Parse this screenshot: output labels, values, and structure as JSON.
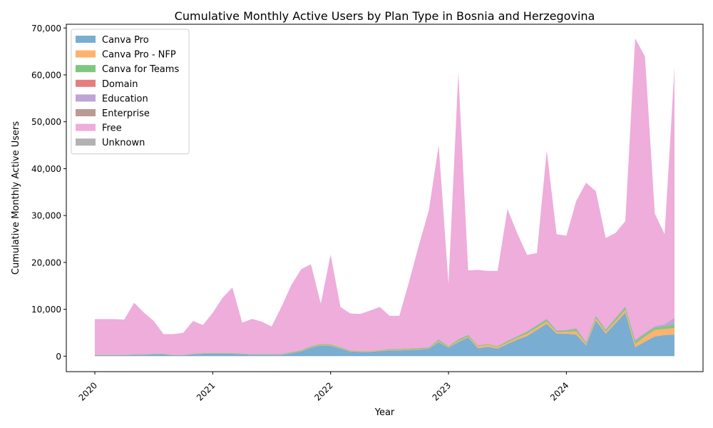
{
  "chart_data": {
    "type": "area",
    "stacked": true,
    "title": "Cumulative Monthly Active Users by Plan Type in Bosnia and Herzegovina",
    "xlabel": "Year",
    "ylabel": "Cumulative Monthly Active Users",
    "xlim": [
      2020.0,
      2024.917
    ],
    "ylim": [
      -3300,
      70800
    ],
    "x_ticks": [
      {
        "value": 2020,
        "label": "2020"
      },
      {
        "value": 2021,
        "label": "2021"
      },
      {
        "value": 2022,
        "label": "2022"
      },
      {
        "value": 2023,
        "label": "2023"
      },
      {
        "value": 2024,
        "label": "2024"
      }
    ],
    "y_ticks": [
      {
        "value": 0,
        "label": "0"
      },
      {
        "value": 10000,
        "label": "10,000"
      },
      {
        "value": 20000,
        "label": "20,000"
      },
      {
        "value": 30000,
        "label": "30,000"
      },
      {
        "value": 40000,
        "label": "40,000"
      },
      {
        "value": 50000,
        "label": "50,000"
      },
      {
        "value": 60000,
        "label": "60,000"
      },
      {
        "value": 70000,
        "label": "70,000"
      }
    ],
    "grid": false,
    "legend_position": "top-left",
    "x": [
      "2020-01",
      "2020-02",
      "2020-03",
      "2020-04",
      "2020-05",
      "2020-06",
      "2020-07",
      "2020-08",
      "2020-09",
      "2020-10",
      "2020-11",
      "2020-12",
      "2021-01",
      "2021-02",
      "2021-03",
      "2021-04",
      "2021-05",
      "2021-06",
      "2021-07",
      "2021-08",
      "2021-09",
      "2021-10",
      "2021-11",
      "2021-12",
      "2022-01",
      "2022-02",
      "2022-03",
      "2022-04",
      "2022-05",
      "2022-06",
      "2022-07",
      "2022-08",
      "2022-09",
      "2022-10",
      "2022-11",
      "2022-12",
      "2023-01",
      "2023-02",
      "2023-03",
      "2023-04",
      "2023-05",
      "2023-06",
      "2023-07",
      "2023-08",
      "2023-09",
      "2023-10",
      "2023-11",
      "2023-12",
      "2024-01",
      "2024-02",
      "2024-03",
      "2024-04",
      "2024-05",
      "2024-06",
      "2024-07",
      "2024-08",
      "2024-09",
      "2024-10",
      "2024-11",
      "2024-12"
    ],
    "series": [
      {
        "name": "Canva Pro",
        "color": "#1f77b4",
        "values": [
          200,
          200,
          200,
          200,
          300,
          300,
          400,
          400,
          200,
          200,
          400,
          500,
          500,
          500,
          500,
          400,
          300,
          300,
          300,
          300,
          600,
          1000,
          1800,
          2300,
          2200,
          1600,
          1000,
          900,
          900,
          1100,
          1200,
          1200,
          1300,
          1400,
          1600,
          3000,
          1800,
          3000,
          4000,
          1700,
          2000,
          1600,
          2600,
          3500,
          4300,
          5600,
          6900,
          4800,
          4800,
          4600,
          2300,
          7600,
          4800,
          7000,
          9300,
          1900,
          3100,
          4200,
          4500,
          4600
        ]
      },
      {
        "name": "Canva Pro - NFP",
        "color": "#ff7f0e",
        "values": [
          50,
          50,
          50,
          50,
          50,
          50,
          50,
          50,
          50,
          50,
          50,
          50,
          50,
          50,
          50,
          50,
          50,
          50,
          50,
          50,
          50,
          50,
          100,
          100,
          100,
          100,
          100,
          100,
          100,
          100,
          100,
          100,
          100,
          100,
          100,
          200,
          100,
          200,
          200,
          400,
          400,
          300,
          300,
          400,
          500,
          500,
          500,
          300,
          400,
          700,
          300,
          500,
          400,
          500,
          600,
          700,
          1100,
          1400,
          1300,
          1400
        ]
      },
      {
        "name": "Canva for Teams",
        "color": "#2ca02c",
        "values": [
          50,
          50,
          50,
          50,
          50,
          50,
          50,
          50,
          50,
          50,
          50,
          100,
          100,
          100,
          100,
          100,
          100,
          100,
          100,
          100,
          200,
          200,
          200,
          200,
          200,
          200,
          100,
          100,
          100,
          100,
          200,
          200,
          200,
          200,
          200,
          300,
          200,
          300,
          300,
          200,
          200,
          200,
          300,
          300,
          400,
          400,
          400,
          300,
          300,
          500,
          300,
          400,
          400,
          500,
          500,
          600,
          600,
          500,
          600,
          800
        ]
      },
      {
        "name": "Domain",
        "color": "#d62728",
        "values": [
          0,
          0,
          0,
          0,
          0,
          0,
          0,
          0,
          0,
          0,
          0,
          0,
          0,
          0,
          0,
          0,
          0,
          0,
          0,
          0,
          0,
          0,
          0,
          0,
          0,
          0,
          0,
          0,
          0,
          0,
          0,
          0,
          0,
          0,
          0,
          0,
          0,
          0,
          0,
          0,
          0,
          0,
          0,
          0,
          0,
          0,
          0,
          0,
          0,
          0,
          0,
          0,
          0,
          0,
          0,
          0,
          0,
          0,
          0,
          0
        ]
      },
      {
        "name": "Education",
        "color": "#9467bd",
        "values": [
          0,
          0,
          0,
          0,
          0,
          0,
          0,
          0,
          0,
          0,
          0,
          0,
          0,
          0,
          0,
          0,
          0,
          0,
          0,
          0,
          0,
          0,
          0,
          0,
          0,
          0,
          0,
          0,
          0,
          0,
          0,
          0,
          0,
          0,
          0,
          100,
          0,
          100,
          100,
          0,
          0,
          0,
          100,
          100,
          100,
          200,
          200,
          100,
          100,
          200,
          100,
          200,
          100,
          200,
          300,
          300,
          200,
          300,
          400,
          1400
        ]
      },
      {
        "name": "Enterprise",
        "color": "#8c564b",
        "values": [
          0,
          0,
          0,
          0,
          0,
          0,
          0,
          0,
          0,
          0,
          0,
          0,
          0,
          0,
          0,
          0,
          0,
          0,
          0,
          0,
          0,
          0,
          0,
          0,
          0,
          0,
          0,
          0,
          0,
          0,
          0,
          0,
          0,
          0,
          0,
          0,
          0,
          0,
          0,
          0,
          0,
          0,
          0,
          0,
          0,
          0,
          0,
          0,
          0,
          0,
          0,
          0,
          0,
          0,
          0,
          0,
          0,
          0,
          0,
          0
        ]
      },
      {
        "name": "Free",
        "color": "#e377c2",
        "values": [
          7600,
          7600,
          7600,
          7500,
          11000,
          8900,
          7000,
          4200,
          4400,
          4700,
          7000,
          6000,
          8600,
          11800,
          14000,
          6600,
          7500,
          6900,
          5900,
          10100,
          14300,
          17300,
          17500,
          8600,
          19200,
          8600,
          7900,
          7900,
          8600,
          9200,
          7100,
          7100,
          14400,
          22100,
          29200,
          41400,
          13300,
          56900,
          13700,
          16100,
          15600,
          16100,
          28100,
          21900,
          16300,
          15300,
          35900,
          20500,
          20100,
          27100,
          34000,
          26500,
          19500,
          18100,
          18100,
          64300,
          58900,
          24000,
          19200,
          53300
        ]
      },
      {
        "name": "Unknown",
        "color": "#7f7f7f",
        "values": [
          0,
          0,
          0,
          0,
          0,
          0,
          0,
          0,
          0,
          0,
          0,
          0,
          0,
          0,
          0,
          0,
          0,
          0,
          0,
          0,
          0,
          0,
          0,
          0,
          0,
          0,
          0,
          0,
          0,
          0,
          0,
          0,
          0,
          0,
          0,
          0,
          0,
          0,
          0,
          0,
          0,
          0,
          0,
          0,
          0,
          0,
          0,
          0,
          0,
          0,
          0,
          0,
          0,
          0,
          0,
          0,
          0,
          0,
          0,
          0
        ]
      }
    ]
  }
}
